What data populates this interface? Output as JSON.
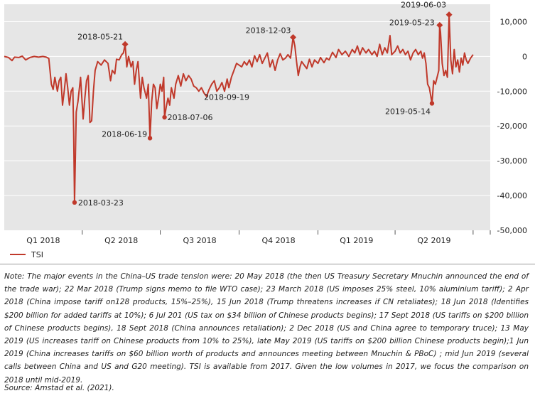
{
  "legend": {
    "label": "TSI"
  },
  "note": "Note: The major events in the China–US trade tension were: 20 May 2018 (the then US Treasury Secretary Mnuchin announced the end of the trade war); 22 Mar 2018 (Trump signs memo to file WTO case); 23 March 2018 (US imposes 25% steel, 10% aluminium tariff); 2 Apr 2018 (China impose tariff on128 products, 15%–25%), 15 Jun 2018 (Trump threatens increases if CN retaliates); 18 Jun 2018 (Identifies $200 billion for added tariffs at 10%); 6 Jul 201 (US tax on $34 billion of Chinese products begins); 17 Sept 2018 (US tariffs on $200 billion of Chinese products begins), 18 Sept 2018 (China announces retaliation); 2 Dec 2018 (US and China agree to temporary truce); 13 May 2019 (US increases tariff on Chinese products from 10% to 25%), late May 2019 (US tariffs on $200 billion Chinese products begin);1 Jun 2019 (China increases tariffs on $60 billion worth of products and announces meeting between Mnuchin & PBoC) ; mid Jun 2019 (several calls between China and US and G20 meeting). TSI is available from 2017. Given the low volumes in 2017, we focus the comparison on 2018 until mid-2019.",
  "source": "Source: Amstad et al. (2021).",
  "chart_data": {
    "type": "line",
    "title": "",
    "xlabel": "",
    "ylabel": "",
    "ylim": [
      -50000,
      15000
    ],
    "yticks": [
      10000,
      0,
      -10000,
      -20000,
      -30000,
      -40000,
      -50000
    ],
    "ytick_labels": [
      "10,000",
      "0",
      "-10,000",
      "-20,000",
      "-30,000",
      "-40,000",
      "-50,000"
    ],
    "xlim": [
      "2017-12-31",
      "2019-07-21"
    ],
    "x_categories": [
      "Q1 2018",
      "Q2 2018",
      "Q3 2018",
      "Q4 2018",
      "Q1 2019",
      "Q2 2019"
    ],
    "grid": "horizontal",
    "background": "#e6e6e6",
    "line_color": "#c0392b",
    "legend_position": "bottom-left",
    "series": [
      {
        "name": "TSI",
        "points": [
          [
            "2017-12-31",
            0
          ],
          [
            "2018-01-05",
            -300
          ],
          [
            "2018-01-09",
            -1200
          ],
          [
            "2018-01-12",
            -200
          ],
          [
            "2018-01-17",
            -300
          ],
          [
            "2018-01-21",
            100
          ],
          [
            "2018-01-25",
            -1000
          ],
          [
            "2018-01-30",
            -300
          ],
          [
            "2018-02-04",
            0
          ],
          [
            "2018-02-09",
            -200
          ],
          [
            "2018-02-14",
            0
          ],
          [
            "2018-02-18",
            -200
          ],
          [
            "2018-02-21",
            -600
          ],
          [
            "2018-02-24",
            -8000
          ],
          [
            "2018-02-26",
            -9500
          ],
          [
            "2018-02-28",
            -6000
          ],
          [
            "2018-03-03",
            -10000
          ],
          [
            "2018-03-05",
            -7000
          ],
          [
            "2018-03-07",
            -6000
          ],
          [
            "2018-03-09",
            -14000
          ],
          [
            "2018-03-11",
            -10000
          ],
          [
            "2018-03-13",
            -5000
          ],
          [
            "2018-03-15",
            -9000
          ],
          [
            "2018-03-17",
            -14000
          ],
          [
            "2018-03-19",
            -10000
          ],
          [
            "2018-03-21",
            -9000
          ],
          [
            "2018-03-22",
            -22000
          ],
          [
            "2018-03-23",
            -42000
          ],
          [
            "2018-03-25",
            -16000
          ],
          [
            "2018-03-27",
            -13000
          ],
          [
            "2018-03-30",
            -6000
          ],
          [
            "2018-04-02",
            -18000
          ],
          [
            "2018-04-04",
            -12000
          ],
          [
            "2018-04-06",
            -7000
          ],
          [
            "2018-04-08",
            -5500
          ],
          [
            "2018-04-10",
            -19000
          ],
          [
            "2018-04-12",
            -18500
          ],
          [
            "2018-04-14",
            -10000
          ],
          [
            "2018-04-16",
            -4000
          ],
          [
            "2018-04-19",
            -1500
          ],
          [
            "2018-04-23",
            -2500
          ],
          [
            "2018-04-27",
            -1000
          ],
          [
            "2018-05-01",
            -2000
          ],
          [
            "2018-05-04",
            -7000
          ],
          [
            "2018-05-06",
            -4000
          ],
          [
            "2018-05-09",
            -5000
          ],
          [
            "2018-05-11",
            -800
          ],
          [
            "2018-05-14",
            -1000
          ],
          [
            "2018-05-17",
            500
          ],
          [
            "2018-05-19",
            1000
          ],
          [
            "2018-05-21",
            3500
          ],
          [
            "2018-05-23",
            -3000
          ],
          [
            "2018-05-25",
            0
          ],
          [
            "2018-05-28",
            -3000
          ],
          [
            "2018-05-30",
            -1500
          ],
          [
            "2018-06-01",
            -8000
          ],
          [
            "2018-06-03",
            -4000
          ],
          [
            "2018-06-05",
            -1500
          ],
          [
            "2018-06-08",
            -12000
          ],
          [
            "2018-06-10",
            -6000
          ],
          [
            "2018-06-12",
            -9000
          ],
          [
            "2018-06-15",
            -12000
          ],
          [
            "2018-06-17",
            -8000
          ],
          [
            "2018-06-19",
            -23500
          ],
          [
            "2018-06-21",
            -13000
          ],
          [
            "2018-06-23",
            -8000
          ],
          [
            "2018-06-25",
            -9000
          ],
          [
            "2018-06-27",
            -15000
          ],
          [
            "2018-06-29",
            -12000
          ],
          [
            "2018-07-01",
            -8000
          ],
          [
            "2018-07-03",
            -10000
          ],
          [
            "2018-07-05",
            -6000
          ],
          [
            "2018-07-06",
            -17500
          ],
          [
            "2018-07-08",
            -14500
          ],
          [
            "2018-07-10",
            -12000
          ],
          [
            "2018-07-12",
            -14000
          ],
          [
            "2018-07-14",
            -9000
          ],
          [
            "2018-07-17",
            -12000
          ],
          [
            "2018-07-19",
            -8000
          ],
          [
            "2018-07-22",
            -5500
          ],
          [
            "2018-07-25",
            -8500
          ],
          [
            "2018-07-28",
            -5000
          ],
          [
            "2018-07-31",
            -7000
          ],
          [
            "2018-08-03",
            -5500
          ],
          [
            "2018-08-06",
            -6500
          ],
          [
            "2018-08-09",
            -8500
          ],
          [
            "2018-08-12",
            -9000
          ],
          [
            "2018-08-15",
            -10000
          ],
          [
            "2018-08-18",
            -9000
          ],
          [
            "2018-08-21",
            -10500
          ],
          [
            "2018-08-24",
            -11500
          ],
          [
            "2018-08-27",
            -9500
          ],
          [
            "2018-08-30",
            -8000
          ],
          [
            "2018-09-02",
            -7000
          ],
          [
            "2018-09-05",
            -10000
          ],
          [
            "2018-09-08",
            -9000
          ],
          [
            "2018-09-11",
            -7500
          ],
          [
            "2018-09-14",
            -10000
          ],
          [
            "2018-09-17",
            -6500
          ],
          [
            "2018-09-19",
            -9000
          ],
          [
            "2018-09-22",
            -6000
          ],
          [
            "2018-09-25",
            -4000
          ],
          [
            "2018-09-28",
            -2000
          ],
          [
            "2018-10-01",
            -2500
          ],
          [
            "2018-10-04",
            -3000
          ],
          [
            "2018-10-07",
            -1500
          ],
          [
            "2018-10-10",
            -2500
          ],
          [
            "2018-10-13",
            -1000
          ],
          [
            "2018-10-16",
            -3000
          ],
          [
            "2018-10-19",
            200
          ],
          [
            "2018-10-22",
            -1500
          ],
          [
            "2018-10-25",
            500
          ],
          [
            "2018-10-28",
            -2000
          ],
          [
            "2018-10-31",
            -500
          ],
          [
            "2018-11-03",
            1000
          ],
          [
            "2018-11-06",
            -3000
          ],
          [
            "2018-11-09",
            -1000
          ],
          [
            "2018-11-12",
            -4000
          ],
          [
            "2018-11-15",
            -1000
          ],
          [
            "2018-11-18",
            800
          ],
          [
            "2018-11-21",
            -1000
          ],
          [
            "2018-11-24",
            -500
          ],
          [
            "2018-11-27",
            500
          ],
          [
            "2018-11-30",
            -500
          ],
          [
            "2018-12-03",
            5500
          ],
          [
            "2018-12-05",
            3000
          ],
          [
            "2018-12-07",
            -1500
          ],
          [
            "2018-12-09",
            -5500
          ],
          [
            "2018-12-11",
            -3000
          ],
          [
            "2018-12-13",
            -1500
          ],
          [
            "2018-12-16",
            -2500
          ],
          [
            "2018-12-19",
            -3500
          ],
          [
            "2018-12-22",
            -800
          ],
          [
            "2018-12-25",
            -3000
          ],
          [
            "2018-12-28",
            -1000
          ],
          [
            "2019-01-01",
            -2000
          ],
          [
            "2019-01-04",
            -300
          ],
          [
            "2019-01-08",
            -1800
          ],
          [
            "2019-01-11",
            -500
          ],
          [
            "2019-01-14",
            -1000
          ],
          [
            "2019-01-18",
            1200
          ],
          [
            "2019-01-22",
            -300
          ],
          [
            "2019-01-25",
            2000
          ],
          [
            "2019-01-29",
            500
          ],
          [
            "2019-02-02",
            1500
          ],
          [
            "2019-02-06",
            0
          ],
          [
            "2019-02-10",
            2000
          ],
          [
            "2019-02-13",
            1000
          ],
          [
            "2019-02-16",
            3000
          ],
          [
            "2019-02-19",
            500
          ],
          [
            "2019-02-22",
            2500
          ],
          [
            "2019-02-26",
            1000
          ],
          [
            "2019-03-01",
            2000
          ],
          [
            "2019-03-05",
            500
          ],
          [
            "2019-03-08",
            1500
          ],
          [
            "2019-03-11",
            0
          ],
          [
            "2019-03-14",
            3500
          ],
          [
            "2019-03-17",
            500
          ],
          [
            "2019-03-20",
            2500
          ],
          [
            "2019-03-23",
            1000
          ],
          [
            "2019-03-26",
            6000
          ],
          [
            "2019-03-28",
            500
          ],
          [
            "2019-04-01",
            1500
          ],
          [
            "2019-04-04",
            3000
          ],
          [
            "2019-04-07",
            1000
          ],
          [
            "2019-04-10",
            2000
          ],
          [
            "2019-04-13",
            500
          ],
          [
            "2019-04-16",
            1500
          ],
          [
            "2019-04-19",
            -1000
          ],
          [
            "2019-04-22",
            1000
          ],
          [
            "2019-04-25",
            2000
          ],
          [
            "2019-04-28",
            500
          ],
          [
            "2019-05-01",
            1500
          ],
          [
            "2019-05-03",
            -500
          ],
          [
            "2019-05-05",
            1000
          ],
          [
            "2019-05-07",
            -2000
          ],
          [
            "2019-05-09",
            -8000
          ],
          [
            "2019-05-11",
            -9000
          ],
          [
            "2019-05-13",
            -12000
          ],
          [
            "2019-05-14",
            -13500
          ],
          [
            "2019-05-16",
            -7000
          ],
          [
            "2019-05-18",
            -8000
          ],
          [
            "2019-05-20",
            -6000
          ],
          [
            "2019-05-22",
            -4000
          ],
          [
            "2019-05-23",
            9000
          ],
          [
            "2019-05-24",
            7000
          ],
          [
            "2019-05-26",
            -2000
          ],
          [
            "2019-05-28",
            -5500
          ],
          [
            "2019-05-30",
            -4000
          ],
          [
            "2019-06-01",
            -6000
          ],
          [
            "2019-06-03",
            12000
          ],
          [
            "2019-06-05",
            -1000
          ],
          [
            "2019-06-07",
            -5000
          ],
          [
            "2019-06-09",
            2000
          ],
          [
            "2019-06-11",
            -3000
          ],
          [
            "2019-06-13",
            -1000
          ],
          [
            "2019-06-15",
            -4500
          ],
          [
            "2019-06-17",
            -500
          ],
          [
            "2019-06-19",
            -2500
          ],
          [
            "2019-06-21",
            1000
          ],
          [
            "2019-06-23",
            -1000
          ],
          [
            "2019-06-25",
            -2000
          ],
          [
            "2019-06-28",
            -500
          ],
          [
            "2019-07-01",
            500
          ]
        ]
      }
    ],
    "annotations": [
      {
        "label": "2018-03-23",
        "x": "2018-03-23",
        "y": -42000,
        "marker": "circle"
      },
      {
        "label": "2018-05-21",
        "x": "2018-05-21",
        "y": 3500,
        "marker": "diamond"
      },
      {
        "label": "2018-06-19",
        "x": "2018-06-19",
        "y": -23500,
        "marker": "circle"
      },
      {
        "label": "2018-07-06",
        "x": "2018-07-06",
        "y": -17500,
        "marker": "circle"
      },
      {
        "label": "2018-09-19",
        "x": "2018-09-19",
        "y": -9000,
        "marker": "none"
      },
      {
        "label": "2018-12-03",
        "x": "2018-12-03",
        "y": 5500,
        "marker": "diamond"
      },
      {
        "label": "2019-05-14",
        "x": "2019-05-14",
        "y": -13500,
        "marker": "circle"
      },
      {
        "label": "2019-05-23",
        "x": "2019-05-23",
        "y": 9000,
        "marker": "diamond"
      },
      {
        "label": "2019-06-03",
        "x": "2019-06-03",
        "y": 12000,
        "marker": "diamond"
      }
    ]
  }
}
